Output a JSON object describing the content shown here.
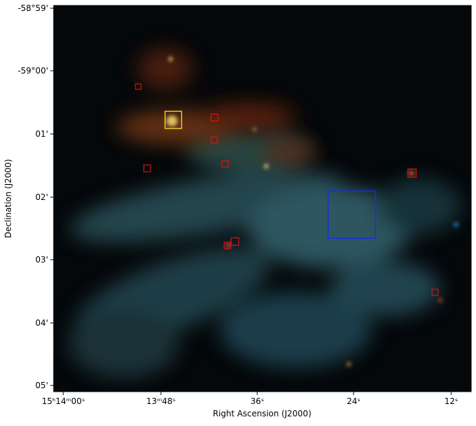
{
  "axes": {
    "x_label": "Right Ascension (J2000)",
    "y_label": "Declination (J2000)",
    "x_ticks": [
      "15ʰ14ᵐ00ˢ",
      "13ᵐ48ˢ",
      "36ˢ",
      "24ˢ",
      "12ˢ"
    ],
    "y_ticks": [
      "-58°59'",
      "-59°00'",
      "01'",
      "02'",
      "03'",
      "04'",
      "05'"
    ]
  }
}
